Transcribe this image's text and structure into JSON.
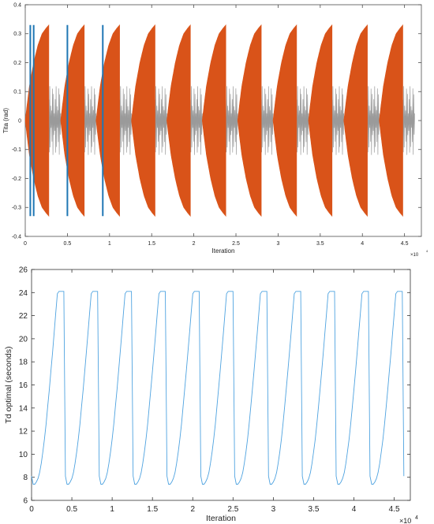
{
  "charts": [
    {
      "type": "line",
      "title": "",
      "xlabel": "Iteration",
      "ylabel": "Tita (rad)",
      "x_multiplier_label": "×10",
      "x_multiplier_exp": "4",
      "xlim": [
        0,
        4.7
      ],
      "ylim": [
        -0.4,
        0.4
      ],
      "xticks": [
        "0",
        "0.5",
        "1",
        "1.5",
        "2",
        "2.5",
        "3",
        "3.5",
        "4",
        "4.5"
      ],
      "xtick_values": [
        0,
        0.5,
        1,
        1.5,
        2,
        2.5,
        3,
        3.5,
        4,
        4.5
      ],
      "yticks": [
        "-0.4",
        "-0.3",
        "-0.2",
        "-0.1",
        "0",
        "0.1",
        "0.2",
        "0.3",
        "0.4"
      ],
      "ytick_values": [
        -0.4,
        -0.3,
        -0.2,
        -0.1,
        0,
        0.1,
        0.2,
        0.3,
        0.4
      ],
      "colors": {
        "orange": "#d95319",
        "blue": "#1f77b4",
        "gray": "#9a9a9a",
        "axis": "#4d4d4d"
      },
      "chart_data": {
        "type": "area",
        "cycle_starts": [
          0.0,
          0.42,
          0.84,
          1.26,
          1.68,
          2.1,
          2.52,
          2.94,
          3.36,
          3.78,
          4.2
        ],
        "cycle_length": 0.42,
        "orange_envelope": {
          "x_offset": [
            0.0,
            0.02,
            0.05,
            0.1,
            0.15,
            0.2,
            0.25,
            0.28
          ],
          "amplitude": [
            0.0,
            0.05,
            0.12,
            0.2,
            0.26,
            0.3,
            0.32,
            0.33
          ]
        },
        "gray_oscillation_amplitude": 0.12,
        "blue_spike_x": [
          0.06,
          0.1,
          0.5,
          0.92
        ],
        "blue_spike_amplitude": 0.33,
        "data_end_x": 4.62
      }
    },
    {
      "type": "line",
      "title": "",
      "xlabel": "Iteration",
      "ylabel": "Td optimal (seconds)",
      "x_multiplier_label": "×10",
      "x_multiplier_exp": "4",
      "xlim": [
        0,
        4.7
      ],
      "ylim": [
        6,
        26
      ],
      "xticks": [
        "0",
        "0.5",
        "1",
        "1.5",
        "2",
        "2.5",
        "3",
        "3.5",
        "4",
        "4.5"
      ],
      "xtick_values": [
        0,
        0.5,
        1,
        1.5,
        2,
        2.5,
        3,
        3.5,
        4,
        4.5
      ],
      "yticks": [
        "6",
        "8",
        "10",
        "12",
        "14",
        "16",
        "18",
        "20",
        "22",
        "24",
        "26"
      ],
      "ytick_values": [
        6,
        8,
        10,
        12,
        14,
        16,
        18,
        20,
        22,
        24,
        26
      ],
      "colors": {
        "line": "#4fa3e0",
        "axis": "#333333"
      },
      "chart_data": {
        "type": "line",
        "cycle_starts": [
          0.0,
          0.42,
          0.84,
          1.26,
          1.68,
          2.1,
          2.52,
          2.94,
          3.36,
          3.78,
          4.2
        ],
        "cycle_length": 0.42,
        "cycle_profile": {
          "x_offset": [
            0.0,
            0.02,
            0.04,
            0.06,
            0.08,
            0.1,
            0.12,
            0.14,
            0.16,
            0.18,
            0.2,
            0.22,
            0.24,
            0.26,
            0.28,
            0.3,
            0.32,
            0.34,
            0.36,
            0.38,
            0.4,
            0.42
          ],
          "y": [
            8.1,
            7.4,
            7.4,
            7.6,
            7.9,
            8.4,
            9.2,
            10.2,
            11.3,
            12.6,
            14.1,
            15.6,
            17.2,
            18.8,
            20.5,
            22.2,
            23.9,
            24.1,
            24.1,
            24.1,
            24.1,
            8.1
          ]
        },
        "data_end_x": 4.62
      }
    }
  ]
}
